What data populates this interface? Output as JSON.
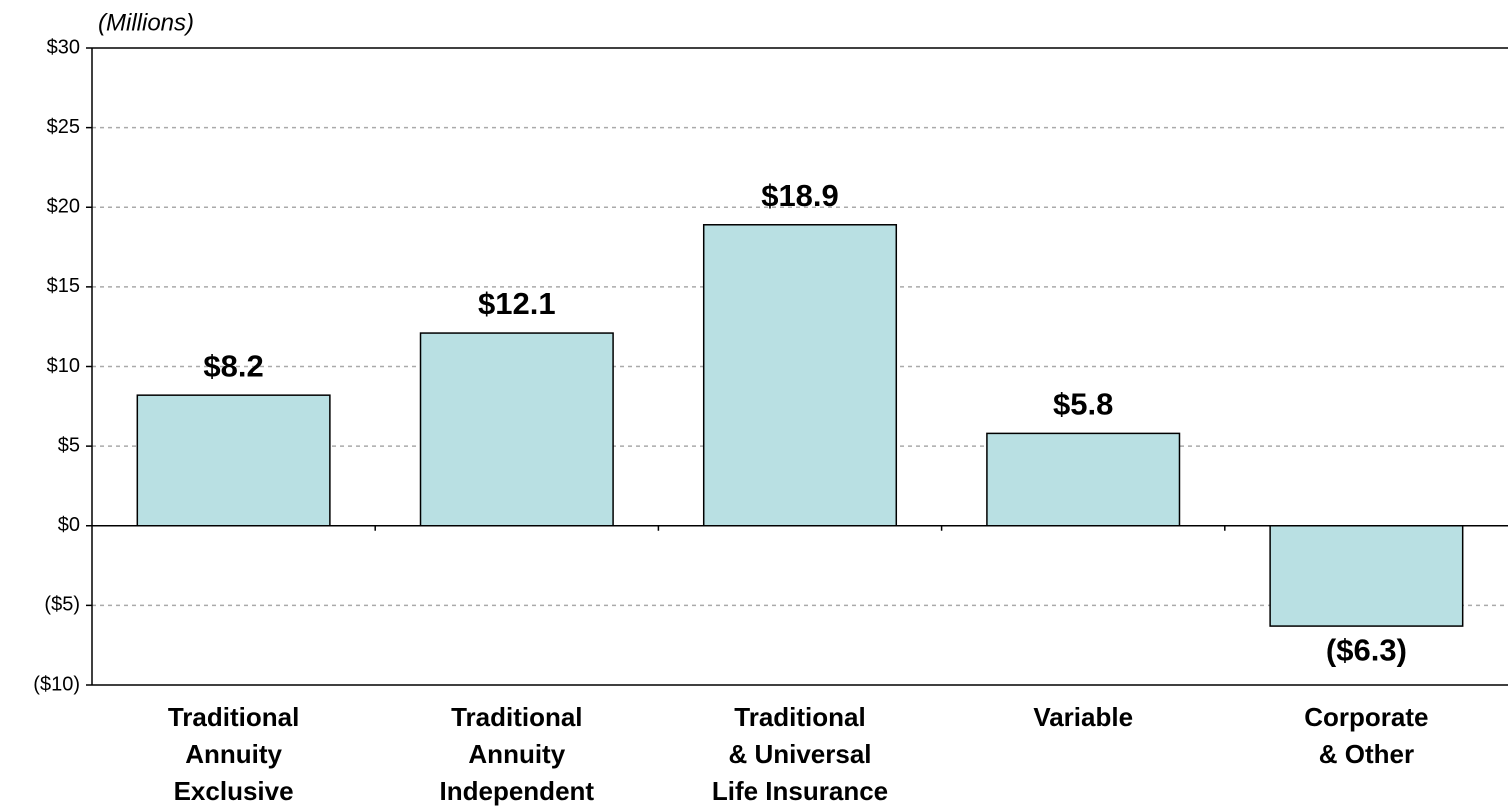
{
  "chart_data": {
    "type": "bar",
    "y_axis_label": "(Millions)",
    "categories": [
      "Traditional\nAnnuity\nExclusive",
      "Traditional\nAnnuity\nIndependent",
      "Traditional\n& Universal\nLife Insurance",
      "Variable",
      "Corporate\n& Other"
    ],
    "values": [
      8.2,
      12.1,
      18.9,
      5.8,
      -6.3
    ],
    "value_labels": [
      "$8.2",
      "$12.1",
      "$18.9",
      "$5.8",
      "($6.3)"
    ],
    "color": "#b9e0e3",
    "ylim": [
      -10,
      30
    ],
    "yticks": [
      {
        "value": -10,
        "label": "($10)"
      },
      {
        "value": -5,
        "label": "($5)"
      },
      {
        "value": 0,
        "label": "$0"
      },
      {
        "value": 5,
        "label": "$5"
      },
      {
        "value": 10,
        "label": "$10"
      },
      {
        "value": 15,
        "label": "$15"
      },
      {
        "value": 20,
        "label": "$20"
      },
      {
        "value": 25,
        "label": "$25"
      },
      {
        "value": 30,
        "label": "$30"
      }
    ],
    "grid": true
  }
}
